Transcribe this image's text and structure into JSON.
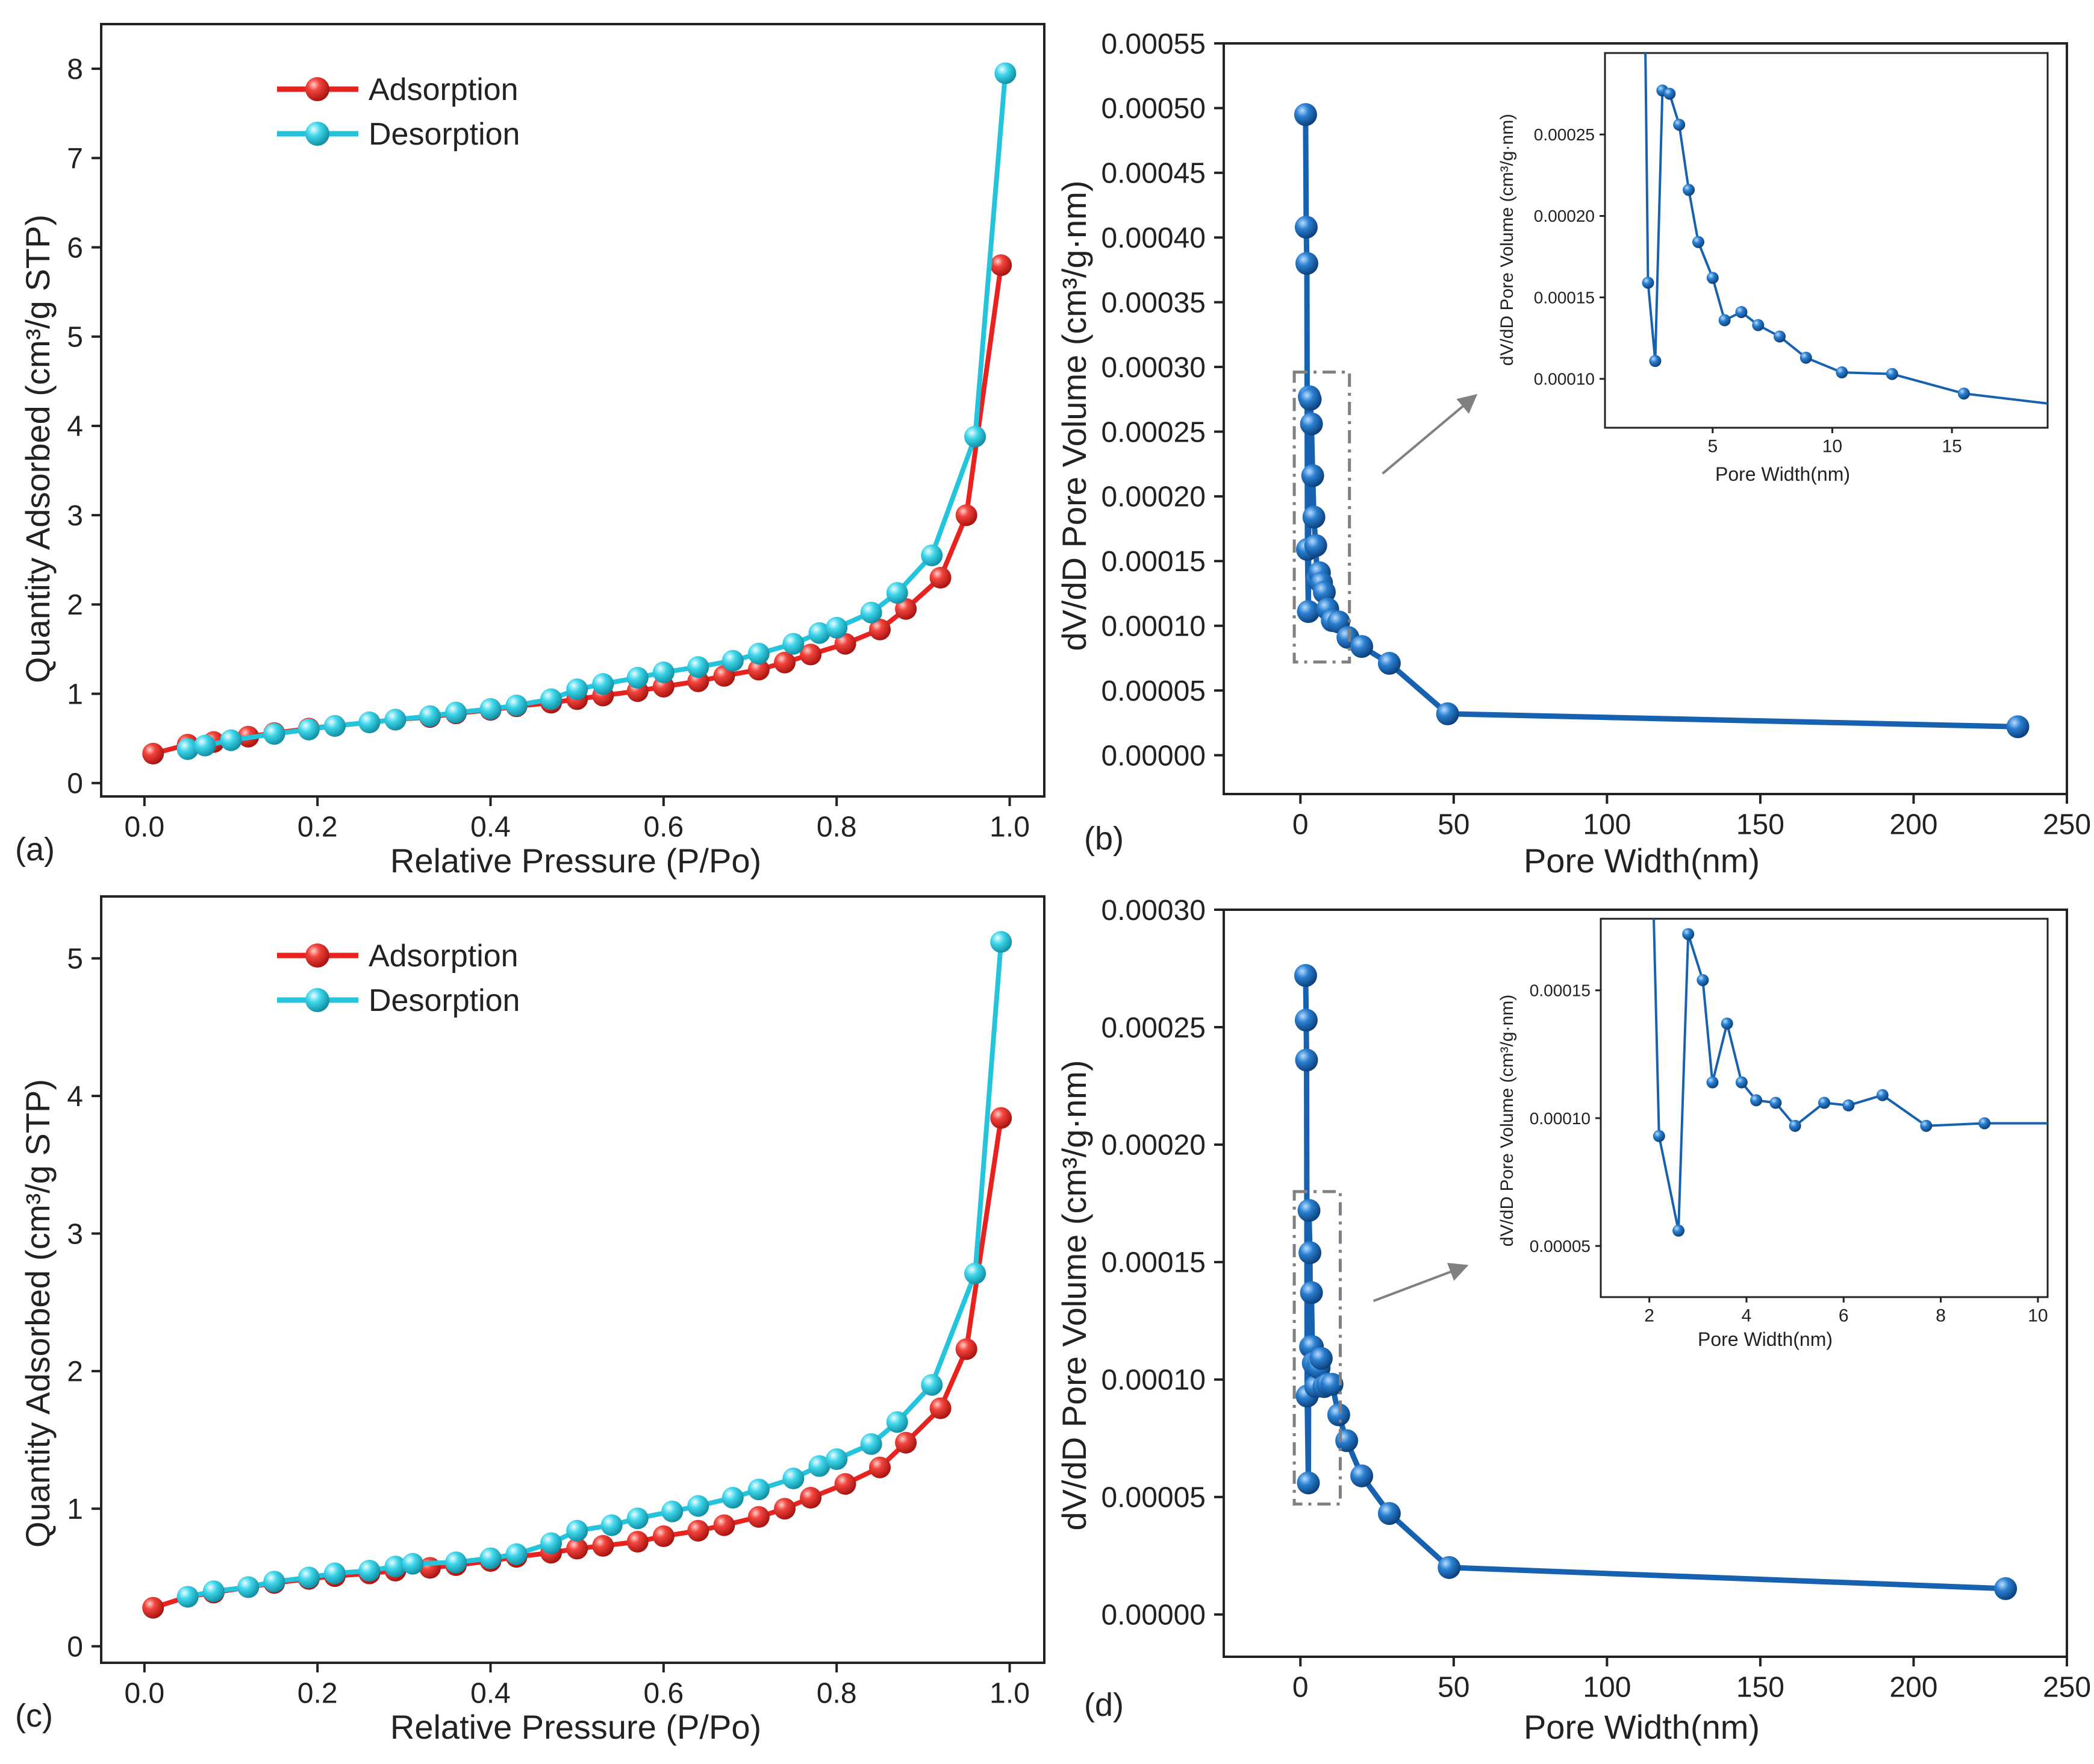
{
  "colors": {
    "adsorption": "#e8231f",
    "desorption": "#23c4dc",
    "pore": "#1762b0",
    "annotation": "#808080",
    "axis": "#222222"
  },
  "chart_data": [
    {
      "id": "a",
      "type": "line",
      "panel_label": "(a)",
      "xlabel": "Relative Pressure (P/Po)",
      "ylabel": "Quantity Adsorbed (cm³/g STP)",
      "xlim": [
        -0.05,
        1.04
      ],
      "ylim": [
        -0.15,
        8.5
      ],
      "xticks": [
        0.0,
        0.2,
        0.4,
        0.6,
        0.8,
        1.0
      ],
      "xtick_labels": [
        "0.0",
        "0.2",
        "0.4",
        "0.6",
        "0.8",
        "1.0"
      ],
      "yticks": [
        0,
        1,
        2,
        3,
        4,
        5,
        6,
        7,
        8
      ],
      "ytick_labels": [
        "0",
        "1",
        "2",
        "3",
        "4",
        "5",
        "6",
        "7",
        "8"
      ],
      "legend": [
        "Adsorption",
        "Desorption"
      ],
      "series": [
        {
          "name": "Adsorption",
          "x": [
            0.01,
            0.05,
            0.08,
            0.12,
            0.15,
            0.19,
            0.22,
            0.26,
            0.29,
            0.33,
            0.36,
            0.4,
            0.43,
            0.47,
            0.5,
            0.53,
            0.57,
            0.6,
            0.64,
            0.67,
            0.71,
            0.74,
            0.77,
            0.81,
            0.85,
            0.88,
            0.92,
            0.95,
            0.99
          ],
          "y": [
            0.33,
            0.43,
            0.46,
            0.52,
            0.56,
            0.61,
            0.64,
            0.68,
            0.71,
            0.74,
            0.78,
            0.82,
            0.86,
            0.9,
            0.94,
            0.98,
            1.03,
            1.08,
            1.14,
            1.2,
            1.27,
            1.35,
            1.44,
            1.56,
            1.72,
            1.95,
            2.3,
            3.0,
            5.8
          ]
        },
        {
          "name": "Desorption",
          "x": [
            0.05,
            0.07,
            0.1,
            0.15,
            0.19,
            0.22,
            0.26,
            0.29,
            0.33,
            0.36,
            0.4,
            0.43,
            0.47,
            0.5,
            0.53,
            0.57,
            0.6,
            0.64,
            0.68,
            0.71,
            0.75,
            0.78,
            0.8,
            0.84,
            0.87,
            0.91,
            0.96,
            0.995
          ],
          "y": [
            0.38,
            0.42,
            0.48,
            0.55,
            0.6,
            0.64,
            0.68,
            0.71,
            0.75,
            0.79,
            0.83,
            0.87,
            0.94,
            1.05,
            1.11,
            1.18,
            1.24,
            1.3,
            1.37,
            1.45,
            1.56,
            1.68,
            1.74,
            1.91,
            2.13,
            2.55,
            3.88,
            7.95
          ]
        }
      ]
    },
    {
      "id": "b",
      "type": "line",
      "panel_label": "(b)",
      "xlabel": "Pore Width(nm)",
      "ylabel": "dV/dD Pore Volume (cm³/g·nm)",
      "xlim": [
        -25,
        250
      ],
      "ylim": [
        -3e-05,
        0.00055
      ],
      "xticks": [
        0,
        50,
        100,
        150,
        200,
        250
      ],
      "xtick_labels": [
        "0",
        "50",
        "100",
        "150",
        "200",
        "250"
      ],
      "yticks": [
        0,
        5e-05,
        0.0001,
        0.00015,
        0.0002,
        0.00025,
        0.0003,
        0.00035,
        0.0004,
        0.00045,
        0.0005,
        0.00055
      ],
      "ytick_labels": [
        "0.00000",
        "0.00005",
        "0.00010",
        "0.00015",
        "0.00020",
        "0.00025",
        "0.00030",
        "0.00035",
        "0.00040",
        "0.00045",
        "0.00050",
        "0.00055"
      ],
      "series": [
        {
          "name": "Pore volume",
          "x": [
            1.7,
            1.9,
            2.1,
            2.3,
            2.6,
            2.9,
            3.2,
            3.6,
            4.0,
            4.4,
            5.0,
            5.5,
            6.2,
            6.9,
            7.8,
            8.9,
            10.4,
            12.5,
            15.5,
            20.0,
            29.0,
            48.0,
            234.0
          ],
          "y": [
            0.000495,
            0.000408,
            0.00038,
            0.000159,
            0.000111,
            0.000277,
            0.000275,
            0.000256,
            0.000216,
            0.000184,
            0.000162,
            0.000136,
            0.000141,
            0.000133,
            0.000126,
            0.000113,
            0.000104,
            0.000103,
            9.1e-05,
            8.4e-05,
            7.1e-05,
            3.2e-05,
            2.2e-05
          ]
        }
      ],
      "inset": {
        "xlabel": "Pore Width(nm)",
        "ylabel": "dV/dD Pore Volume (cm³/g·nm)",
        "xlim": [
          0.5,
          19
        ],
        "ylim": [
          7e-05,
          0.0003
        ],
        "xticks": [
          5,
          10,
          15
        ],
        "xtick_labels": [
          "5",
          "10",
          "15"
        ],
        "yticks": [
          0.0001,
          0.00015,
          0.0002,
          0.00025
        ],
        "ytick_labels": [
          "0.00010",
          "0.00015",
          "0.00020",
          "0.00025"
        ],
        "series": {
          "x": [
            2.3,
            2.6,
            2.9,
            3.2,
            3.6,
            4.0,
            4.4,
            5.0,
            5.5,
            6.2,
            6.9,
            7.8,
            8.9,
            10.4,
            12.5,
            15.5,
            19.5
          ],
          "y": [
            0.000159,
            0.000111,
            0.000277,
            0.000275,
            0.000256,
            0.000216,
            0.000184,
            0.000162,
            0.000136,
            0.000141,
            0.000133,
            0.000126,
            0.000113,
            0.000104,
            0.000103,
            9.1e-05,
            8.4e-05
          ],
          "marked_count": 16
        }
      },
      "zoom_box": {
        "x0": -2,
        "x1": 16,
        "y0": 7.2e-05,
        "y1": 0.000296
      }
    },
    {
      "id": "c",
      "type": "line",
      "panel_label": "(c)",
      "xlabel": "Relative Pressure (P/Po)",
      "ylabel": "Quantity Adsorbed (cm³/g STP)",
      "xlim": [
        -0.05,
        1.04
      ],
      "ylim": [
        -0.12,
        5.45
      ],
      "xticks": [
        0.0,
        0.2,
        0.4,
        0.6,
        0.8,
        1.0
      ],
      "xtick_labels": [
        "0.0",
        "0.2",
        "0.4",
        "0.6",
        "0.8",
        "1.0"
      ],
      "yticks": [
        0,
        1,
        2,
        3,
        4,
        5
      ],
      "ytick_labels": [
        "0",
        "1",
        "2",
        "3",
        "4",
        "5"
      ],
      "legend": [
        "Adsorption",
        "Desorption"
      ],
      "series": [
        {
          "name": "Adsorption",
          "x": [
            0.01,
            0.05,
            0.08,
            0.12,
            0.15,
            0.19,
            0.22,
            0.26,
            0.29,
            0.33,
            0.36,
            0.4,
            0.43,
            0.47,
            0.5,
            0.53,
            0.57,
            0.6,
            0.64,
            0.67,
            0.71,
            0.74,
            0.77,
            0.81,
            0.85,
            0.88,
            0.92,
            0.95,
            0.99
          ],
          "y": [
            0.28,
            0.36,
            0.39,
            0.43,
            0.46,
            0.49,
            0.51,
            0.53,
            0.55,
            0.57,
            0.59,
            0.62,
            0.65,
            0.68,
            0.71,
            0.73,
            0.76,
            0.8,
            0.84,
            0.88,
            0.94,
            1.0,
            1.08,
            1.18,
            1.3,
            1.48,
            1.73,
            2.16,
            3.84
          ]
        },
        {
          "name": "Desorption",
          "x": [
            0.05,
            0.08,
            0.12,
            0.15,
            0.19,
            0.22,
            0.26,
            0.29,
            0.31,
            0.36,
            0.4,
            0.43,
            0.47,
            0.5,
            0.54,
            0.57,
            0.61,
            0.64,
            0.68,
            0.71,
            0.75,
            0.78,
            0.8,
            0.84,
            0.87,
            0.91,
            0.96,
            0.99
          ],
          "y": [
            0.36,
            0.4,
            0.43,
            0.47,
            0.5,
            0.53,
            0.55,
            0.58,
            0.6,
            0.61,
            0.64,
            0.67,
            0.75,
            0.84,
            0.88,
            0.93,
            0.98,
            1.02,
            1.08,
            1.14,
            1.22,
            1.31,
            1.36,
            1.47,
            1.63,
            1.9,
            2.71,
            5.12
          ]
        }
      ]
    },
    {
      "id": "d",
      "type": "line",
      "panel_label": "(d)",
      "xlabel": "Pore Width(nm)",
      "ylabel": "dV/dD Pore Volume (cm³/g·nm)",
      "xlim": [
        -25,
        250
      ],
      "ylim": [
        -1.8e-05,
        0.0003
      ],
      "xticks": [
        0,
        50,
        100,
        150,
        200,
        250
      ],
      "xtick_labels": [
        "0",
        "50",
        "100",
        "150",
        "200",
        "250"
      ],
      "yticks": [
        0,
        5e-05,
        0.0001,
        0.00015,
        0.0002,
        0.00025,
        0.0003
      ],
      "ytick_labels": [
        "0.00000",
        "0.00005",
        "0.00010",
        "0.00015",
        "0.00020",
        "0.00025",
        "0.00030"
      ],
      "series": [
        {
          "name": "Pore volume",
          "x": [
            1.7,
            1.9,
            2.0,
            2.2,
            2.6,
            2.8,
            3.1,
            3.3,
            3.6,
            3.9,
            4.2,
            4.6,
            5.0,
            5.6,
            6.1,
            6.8,
            7.7,
            8.9,
            10.3,
            12.5,
            15.1,
            20.0,
            29.0,
            48.5,
            230.0
          ],
          "y": [
            0.000272,
            0.000253,
            0.000236,
            9.3e-05,
            5.6e-05,
            0.000172,
            0.000154,
            0.000114,
            0.000137,
            0.000114,
            0.000107,
            0.000106,
            9.7e-05,
            0.000106,
            0.000105,
            0.000109,
            9.7e-05,
            9.8e-05,
            9.8e-05,
            8.5e-05,
            7.4e-05,
            5.9e-05,
            4.3e-05,
            2e-05,
            1.1e-05
          ]
        }
      ],
      "inset": {
        "xlabel": "Pore Width(nm)",
        "ylabel": "dV/dD Pore Volume (cm³/g·nm)",
        "xlim": [
          1.0,
          10.2
        ],
        "ylim": [
          3e-05,
          0.000178
        ],
        "xticks": [
          2,
          4,
          6,
          8,
          10
        ],
        "xtick_labels": [
          "2",
          "4",
          "6",
          "8",
          "10"
        ],
        "yticks": [
          5e-05,
          0.0001,
          0.00015
        ],
        "ytick_labels": [
          "0.00005",
          "0.00010",
          "0.00015"
        ],
        "series": {
          "x": [
            2.2,
            2.6,
            2.8,
            3.1,
            3.3,
            3.6,
            3.9,
            4.2,
            4.6,
            5.0,
            5.6,
            6.1,
            6.8,
            7.7,
            8.9,
            10.2
          ],
          "y": [
            9.3e-05,
            5.6e-05,
            0.000172,
            0.000154,
            0.000114,
            0.000137,
            0.000114,
            0.000107,
            0.000106,
            9.7e-05,
            0.000106,
            0.000105,
            0.000109,
            9.7e-05,
            9.8e-05,
            9.8e-05
          ],
          "marked_count": 15
        }
      },
      "zoom_box": {
        "x0": -2,
        "x1": 13,
        "y0": 4.7e-05,
        "y1": 0.00018
      }
    }
  ]
}
